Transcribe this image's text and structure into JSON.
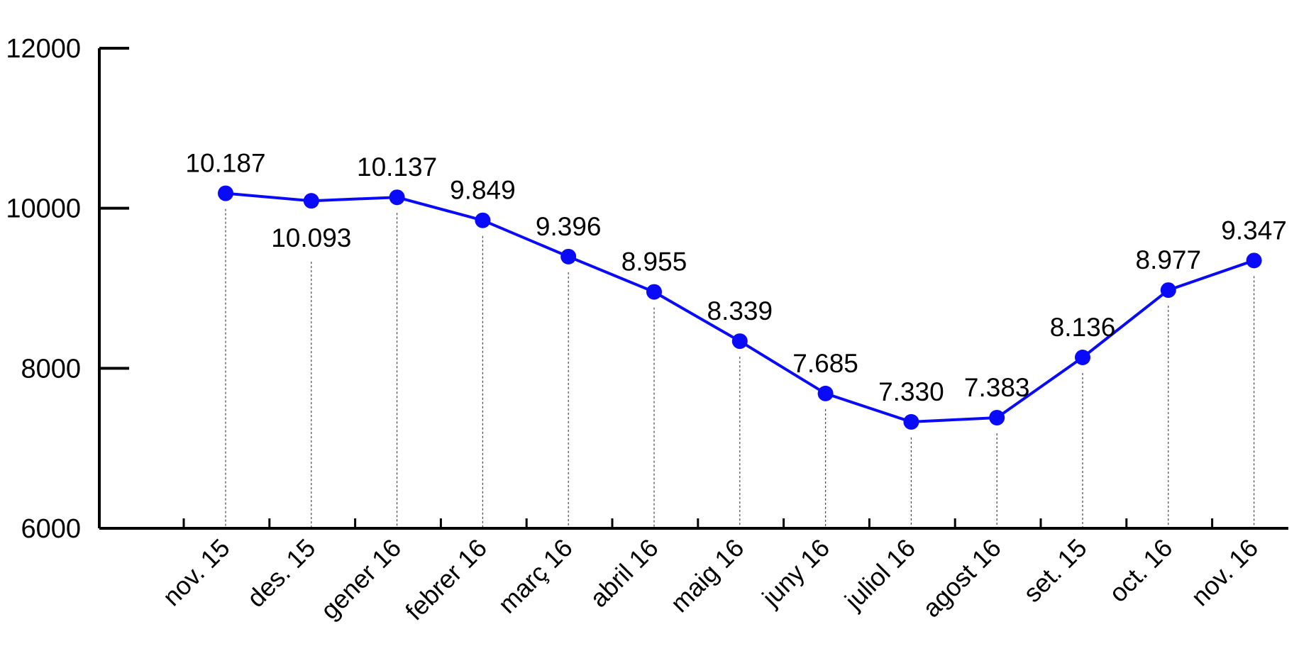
{
  "chart_data": {
    "type": "line",
    "title": "",
    "xlabel": "",
    "ylabel": "",
    "categories": [
      "nov. 15",
      "des. 15",
      "gener 16",
      "febrer 16",
      "març 16",
      "abril 16",
      "maig 16",
      "juny 16",
      "juliol 16",
      "agost 16",
      "set. 15",
      "oct. 16",
      "nov. 16"
    ],
    "values": [
      10187,
      10093,
      10137,
      9849,
      9396,
      8955,
      8339,
      7685,
      7330,
      7383,
      8136,
      8977,
      9347
    ],
    "value_labels": [
      "10.187",
      "10.093",
      "10.137",
      "9.849",
      "9.396",
      "8.955",
      "8.339",
      "7.685",
      "7.330",
      "7.383",
      "8.136",
      "8.977",
      "9.347"
    ],
    "label_position": [
      "above",
      "below",
      "above",
      "above",
      "above",
      "above",
      "above",
      "above",
      "above",
      "above",
      "above",
      "above",
      "above"
    ],
    "ylim": [
      6000,
      12000
    ],
    "yticks": [
      6000,
      8000,
      10000,
      12000
    ],
    "ytick_labels": [
      "6000",
      "8000",
      "10000",
      "12000"
    ],
    "grid": false,
    "drop_lines": "dotted",
    "legend": "none",
    "colors": {
      "series": "#0a0afa",
      "axis": "#000000",
      "drop_line": "#444444"
    }
  }
}
